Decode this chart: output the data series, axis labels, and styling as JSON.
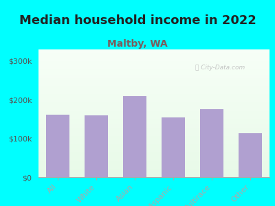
{
  "title": "Median household income in 2022",
  "subtitle": "Maltby, WA",
  "categories": [
    "All",
    "White",
    "Asian",
    "Hispanic",
    "Multirace",
    "Other"
  ],
  "values": [
    162000,
    160000,
    210000,
    155000,
    175000,
    113000
  ],
  "bar_color": "#b0a0d0",
  "background_outer": "#00ffff",
  "yticks": [
    0,
    100000,
    200000,
    300000
  ],
  "ytick_labels": [
    "$0",
    "$100k",
    "$200k",
    "$300k"
  ],
  "ylim": [
    0,
    330000
  ],
  "title_fontsize": 13,
  "subtitle_fontsize": 10,
  "tick_fontsize": 8,
  "watermark_text": "ⓘ City-Data.com",
  "title_color": "#222222",
  "subtitle_color": "#7a5c5c",
  "tick_color": "#555555",
  "axis_color": "#aaaaaa",
  "watermark_color": "#bbbbbb"
}
